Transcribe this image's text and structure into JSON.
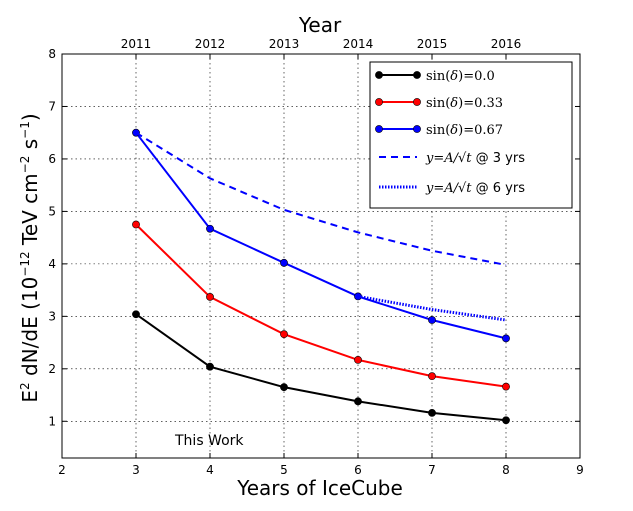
{
  "chart_data": {
    "type": "line",
    "xlabel": "Years of IceCube",
    "ylabel": "E$^2$ dN/dE (10$^{-12}$ TeV cm$^{-2}$ s$^{-1}$)",
    "ylabel_parts": [
      "E",
      "2",
      " dN/dE (10",
      "−12",
      " TeV cm",
      "−2",
      " s",
      "−1",
      ")"
    ],
    "top_xlabel": "Year",
    "xlim": [
      2,
      9
    ],
    "ylim": [
      0.3,
      8
    ],
    "x_ticks": [
      2,
      3,
      4,
      5,
      6,
      7,
      8,
      9
    ],
    "y_ticks": [
      1,
      2,
      3,
      4,
      5,
      6,
      7,
      8
    ],
    "top_ticks": [
      {
        "x": 3,
        "label": "2011"
      },
      {
        "x": 4,
        "label": "2012"
      },
      {
        "x": 5,
        "label": "2013"
      },
      {
        "x": 6,
        "label": "2014"
      },
      {
        "x": 7,
        "label": "2015"
      },
      {
        "x": 8,
        "label": "2016"
      }
    ],
    "grid": true,
    "legend_position": "top-right",
    "annotation": "This Work",
    "series": [
      {
        "name": "sin(δ)=0.0",
        "legend_fn": "sin",
        "legend_arg": "δ",
        "legend_rhs": "=0.0",
        "color": "#000000",
        "style": "solid-marker",
        "x": [
          3,
          4,
          5,
          6,
          7,
          8
        ],
        "y": [
          3.04,
          2.04,
          1.65,
          1.38,
          1.16,
          1.02
        ]
      },
      {
        "name": "sin(δ)=0.33",
        "legend_fn": "sin",
        "legend_arg": "δ",
        "legend_rhs": "=0.33",
        "color": "#ff0000",
        "style": "solid-marker",
        "x": [
          3,
          4,
          5,
          6,
          7,
          8
        ],
        "y": [
          4.75,
          3.37,
          2.66,
          2.17,
          1.86,
          1.66
        ]
      },
      {
        "name": "sin(δ)=0.67",
        "legend_fn": "sin",
        "legend_arg": "δ",
        "legend_rhs": "=0.67",
        "color": "#0000ff",
        "style": "solid-marker",
        "x": [
          3,
          4,
          5,
          6,
          7,
          8
        ],
        "y": [
          6.5,
          4.67,
          4.02,
          3.38,
          2.93,
          2.58
        ]
      },
      {
        "name": "y=A/√t @ 3 yrs",
        "legend_math": "y=A/√t",
        "legend_suffix": " @ 3 yrs",
        "color": "#0000ff",
        "style": "dashed",
        "x": [
          3,
          4,
          5,
          6,
          7,
          8
        ],
        "y": [
          6.5,
          5.63,
          5.03,
          4.6,
          4.25,
          3.98
        ]
      },
      {
        "name": "y=A/√t @ 6 yrs",
        "legend_math": "y=A/√t",
        "legend_suffix": " @ 6 yrs",
        "color": "#0000ff",
        "style": "dotted",
        "x": [
          6,
          7,
          8
        ],
        "y": [
          3.38,
          3.13,
          2.93
        ]
      }
    ]
  }
}
